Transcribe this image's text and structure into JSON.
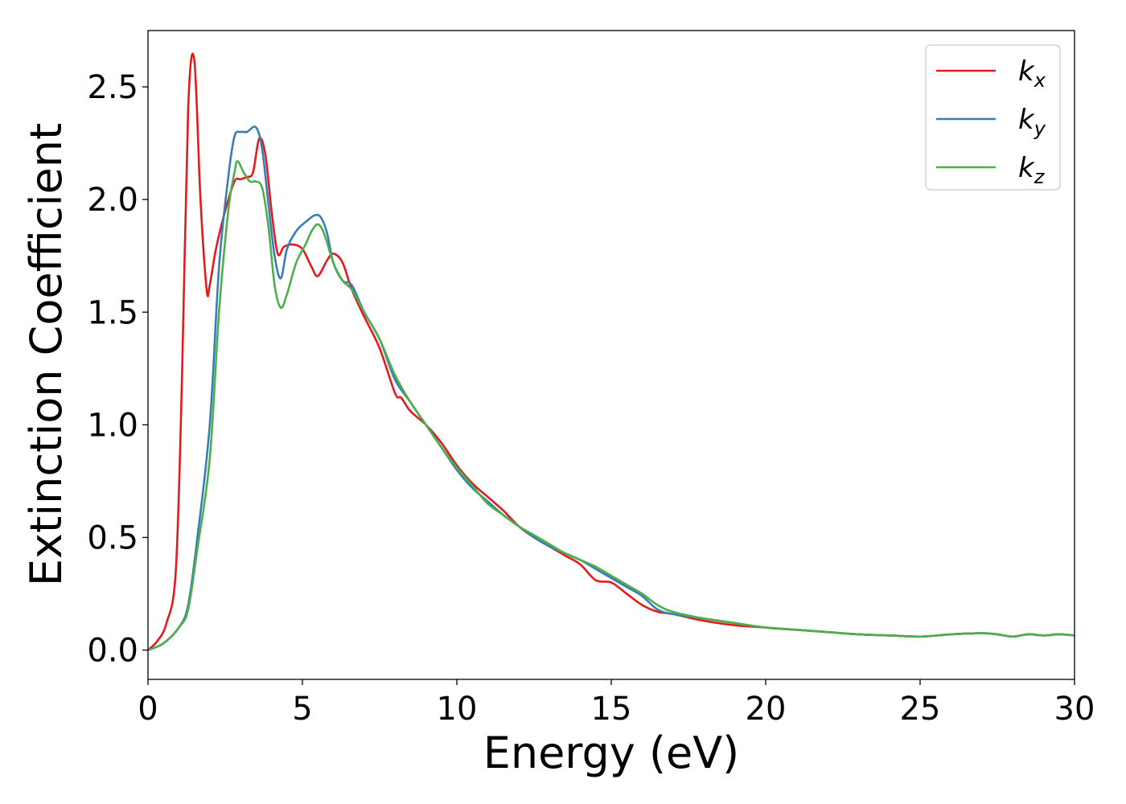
{
  "chart_data": {
    "type": "line",
    "xlabel": "Energy (eV)",
    "ylabel": "Extinction Coefficient",
    "xlim": [
      0,
      30
    ],
    "ylim": [
      -0.13,
      2.75
    ],
    "xticks": [
      0,
      5,
      10,
      15,
      20,
      25,
      30
    ],
    "xtick_labels": [
      "0",
      "5",
      "10",
      "15",
      "20",
      "25",
      "30"
    ],
    "yticks": [
      0.0,
      0.5,
      1.0,
      1.5,
      2.0,
      2.5
    ],
    "ytick_labels": [
      "0.0",
      "0.5",
      "1.0",
      "1.5",
      "2.0",
      "2.5"
    ],
    "grid": false,
    "legend_position": "top-right",
    "series": [
      {
        "name": "k",
        "subscript": "x",
        "color": "#e41a1c",
        "x": [
          0,
          0.3,
          0.6,
          0.9,
          1.1,
          1.3,
          1.5,
          1.7,
          1.9,
          2.0,
          2.2,
          2.5,
          2.8,
          3.0,
          3.2,
          3.4,
          3.6,
          3.8,
          4.0,
          4.2,
          4.4,
          4.7,
          5.0,
          5.3,
          5.5,
          5.8,
          6.0,
          6.3,
          6.6,
          7.0,
          7.5,
          8.0,
          8.2,
          8.5,
          9.0,
          9.5,
          10.0,
          10.5,
          11.0,
          11.5,
          12.0,
          12.5,
          13.0,
          13.5,
          14.0,
          14.5,
          15.0,
          15.5,
          16.0,
          16.5,
          17.0,
          18.0,
          19.0,
          20.0,
          21.0,
          22.0,
          23.0,
          24.0,
          25.0,
          26.0,
          27.0,
          27.5,
          28.0,
          28.5,
          29.0,
          29.5,
          30.0
        ],
        "y": [
          0.0,
          0.04,
          0.12,
          0.35,
          1.2,
          2.4,
          2.62,
          2.0,
          1.6,
          1.62,
          1.78,
          1.95,
          2.08,
          2.09,
          2.1,
          2.12,
          2.27,
          2.2,
          1.95,
          1.76,
          1.79,
          1.8,
          1.78,
          1.7,
          1.66,
          1.73,
          1.76,
          1.72,
          1.6,
          1.48,
          1.34,
          1.14,
          1.12,
          1.06,
          1.0,
          0.92,
          0.82,
          0.74,
          0.68,
          0.62,
          0.55,
          0.5,
          0.46,
          0.42,
          0.38,
          0.31,
          0.3,
          0.25,
          0.2,
          0.17,
          0.16,
          0.13,
          0.11,
          0.1,
          0.09,
          0.08,
          0.07,
          0.065,
          0.06,
          0.07,
          0.075,
          0.07,
          0.06,
          0.07,
          0.065,
          0.07,
          0.065
        ]
      },
      {
        "name": "k",
        "subscript": "y",
        "color": "#377eb8",
        "x": [
          0,
          0.5,
          1.0,
          1.3,
          1.6,
          2.0,
          2.3,
          2.6,
          2.8,
          3.0,
          3.2,
          3.5,
          3.7,
          3.9,
          4.1,
          4.3,
          4.5,
          4.8,
          5.1,
          5.4,
          5.6,
          5.8,
          6.0,
          6.3,
          6.6,
          7.0,
          7.5,
          8.0,
          8.5,
          9.0,
          9.5,
          10.0,
          10.5,
          11.0,
          11.5,
          12.0,
          12.5,
          13.0,
          13.5,
          14.0,
          14.5,
          15.0,
          15.5,
          16.0,
          16.5,
          17.0,
          18.0,
          19.0,
          20.0,
          21.0,
          22.0,
          23.0,
          24.0,
          25.0,
          26.0,
          27.0,
          27.5,
          28.0,
          28.5,
          29.0,
          29.5,
          30.0
        ],
        "y": [
          0.0,
          0.03,
          0.1,
          0.2,
          0.5,
          1.0,
          1.7,
          2.1,
          2.28,
          2.3,
          2.3,
          2.32,
          2.22,
          1.98,
          1.75,
          1.65,
          1.78,
          1.86,
          1.9,
          1.93,
          1.92,
          1.85,
          1.72,
          1.64,
          1.62,
          1.5,
          1.38,
          1.2,
          1.1,
          1.0,
          0.9,
          0.8,
          0.72,
          0.66,
          0.6,
          0.55,
          0.5,
          0.46,
          0.43,
          0.4,
          0.36,
          0.32,
          0.28,
          0.24,
          0.18,
          0.16,
          0.14,
          0.12,
          0.1,
          0.09,
          0.08,
          0.07,
          0.065,
          0.06,
          0.07,
          0.075,
          0.07,
          0.06,
          0.07,
          0.065,
          0.07,
          0.065
        ]
      },
      {
        "name": "k",
        "subscript": "z",
        "color": "#4daf4a",
        "x": [
          0,
          0.5,
          1.0,
          1.3,
          1.6,
          2.0,
          2.3,
          2.6,
          2.8,
          2.9,
          3.1,
          3.3,
          3.5,
          3.7,
          3.9,
          4.1,
          4.3,
          4.5,
          4.8,
          5.1,
          5.3,
          5.5,
          5.7,
          6.0,
          6.3,
          6.6,
          7.0,
          7.5,
          8.0,
          8.5,
          9.0,
          9.5,
          10.0,
          10.5,
          11.0,
          11.5,
          12.0,
          12.5,
          13.0,
          13.5,
          14.0,
          14.5,
          15.0,
          15.5,
          16.0,
          16.5,
          17.0,
          18.0,
          19.0,
          20.0,
          21.0,
          22.0,
          23.0,
          24.0,
          25.0,
          26.0,
          27.0,
          27.5,
          28.0,
          28.5,
          29.0,
          29.5,
          30.0
        ],
        "y": [
          0.0,
          0.03,
          0.1,
          0.18,
          0.45,
          0.85,
          1.5,
          1.95,
          2.12,
          2.17,
          2.12,
          2.08,
          2.08,
          2.05,
          1.88,
          1.62,
          1.52,
          1.58,
          1.72,
          1.8,
          1.86,
          1.89,
          1.85,
          1.72,
          1.64,
          1.6,
          1.5,
          1.38,
          1.22,
          1.1,
          1.0,
          0.9,
          0.81,
          0.73,
          0.65,
          0.6,
          0.55,
          0.51,
          0.47,
          0.43,
          0.4,
          0.37,
          0.33,
          0.29,
          0.25,
          0.2,
          0.17,
          0.14,
          0.12,
          0.1,
          0.09,
          0.08,
          0.07,
          0.065,
          0.06,
          0.07,
          0.075,
          0.07,
          0.06,
          0.07,
          0.065,
          0.07,
          0.065
        ]
      }
    ]
  }
}
